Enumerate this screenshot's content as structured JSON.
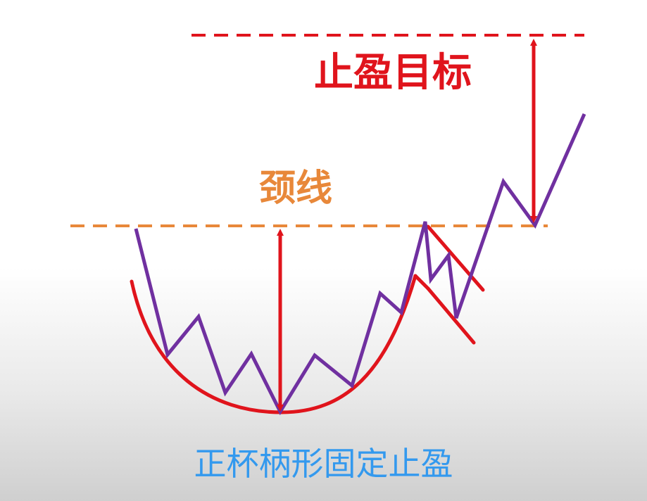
{
  "title": "正杯柄形固定止盈",
  "labels": {
    "profit_target": "止盈目标",
    "neckline": "颈线"
  },
  "colors": {
    "price_line": "#7030A0",
    "cup_curve": "#E0141C",
    "arrows": "#E0141C",
    "target_line": "#E0141C",
    "neckline": "#E8883A",
    "caption": "#3399EE",
    "target_label": "#E0141C",
    "neck_label": "#E8883A"
  },
  "icons": {
    "arrow_up": "arrow-up-icon",
    "arrow_down": "arrow-down-icon"
  }
}
